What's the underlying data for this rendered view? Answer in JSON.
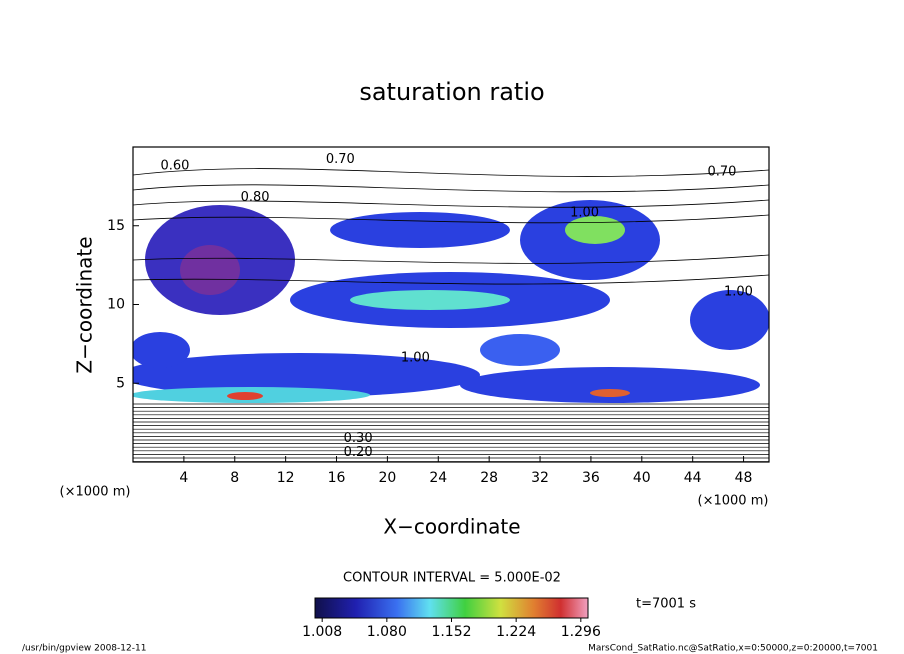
{
  "chart_data": {
    "type": "contour",
    "title": "saturation ratio",
    "x_label": "X−coordinate",
    "y_label": "Z−coordinate",
    "x_unit": "(×1000 m)",
    "y_unit": "(×1000 m)",
    "xlim": [
      0,
      50
    ],
    "xticks": [
      4,
      8,
      12,
      16,
      20,
      24,
      28,
      32,
      36,
      40,
      44,
      48
    ],
    "ylim": [
      0,
      20
    ],
    "yticks": [
      5,
      10,
      15
    ],
    "contour_interval_text": "CONTOUR INTERVAL = 5.000E-02",
    "contour_labels": [
      {
        "label": "0.60",
        "x": 3.3,
        "z": 18.8
      },
      {
        "label": "0.70",
        "x": 16.3,
        "z": 19.2
      },
      {
        "label": "0.70",
        "x": 46.3,
        "z": 18.4
      },
      {
        "label": "0.80",
        "x": 9.6,
        "z": 16.8
      },
      {
        "label": "1.00",
        "x": 35.5,
        "z": 15.8
      },
      {
        "label": "1.00",
        "x": 47.6,
        "z": 10.8
      },
      {
        "label": "1.00",
        "x": 22.2,
        "z": 6.6
      },
      {
        "label": "0.30",
        "x": 17.7,
        "z": 1.5
      },
      {
        "label": "0.20",
        "x": 17.7,
        "z": 0.6
      }
    ],
    "colorbar_lim": [
      1.0,
      1.304
    ],
    "colorbar_ticks": [
      {
        "value": 1.008,
        "label": "1.008"
      },
      {
        "value": 1.08,
        "label": "1.080"
      },
      {
        "value": 1.152,
        "label": "1.152"
      },
      {
        "value": 1.224,
        "label": "1.224"
      },
      {
        "value": 1.296,
        "label": "1.296"
      }
    ],
    "time_label": "t=7001 s",
    "footer_left": "/usr/bin/gpview   2008-12-11",
    "footer_right": "MarsCond_SatRatio.nc@SatRatio,x=0:50000,z=0:20000,t=7001"
  }
}
